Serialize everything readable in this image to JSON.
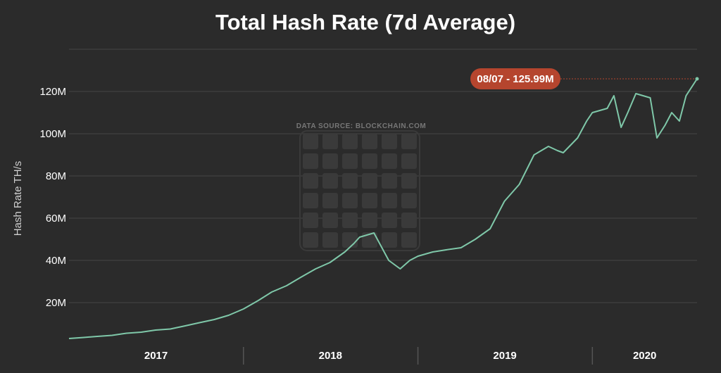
{
  "colors": {
    "background": "#2b2b2b",
    "grid": "#444444",
    "line": "#7fc8a9",
    "callout": "#b5452e",
    "watermark": "#3a3a3a"
  },
  "chart_data": {
    "type": "line",
    "title": "Total Hash Rate (7d Average)",
    "subtitle": "",
    "ylabel": "Hash Rate TH/s",
    "xlabel": "",
    "source_note": "DATA SOURCE: BLOCKCHAIN.COM",
    "ylim": [
      0,
      140
    ],
    "y_unit": "M",
    "y_ticks": [
      20,
      40,
      60,
      80,
      100,
      120
    ],
    "y_tick_labels": [
      "20M",
      "40M",
      "60M",
      "80M",
      "100M",
      "120M"
    ],
    "x_domain": [
      "2017-01-01",
      "2020-08-07"
    ],
    "x_ticks": [
      {
        "label": "2017",
        "start": "2017-01-01",
        "end": "2017-12-31"
      },
      {
        "label": "2018",
        "start": "2018-01-01",
        "end": "2018-12-31"
      },
      {
        "label": "2019",
        "start": "2019-01-01",
        "end": "2019-12-31"
      },
      {
        "label": "2020",
        "start": "2020-01-01",
        "end": "2020-08-07"
      }
    ],
    "grid": true,
    "legend": "none",
    "series": [
      {
        "x": [
          "2017-01-01",
          "2017-02-01",
          "2017-03-01",
          "2017-04-01",
          "2017-05-01",
          "2017-06-01",
          "2017-07-01",
          "2017-08-01",
          "2017-09-01",
          "2017-10-01",
          "2017-11-01",
          "2017-12-01",
          "2018-01-01",
          "2018-02-01",
          "2018-03-01",
          "2018-04-01",
          "2018-05-01",
          "2018-06-01",
          "2018-07-01",
          "2018-08-01",
          "2018-08-20",
          "2018-09-01",
          "2018-10-01",
          "2018-11-01",
          "2018-11-25",
          "2018-12-15",
          "2019-01-01",
          "2019-02-01",
          "2019-03-01",
          "2019-04-01",
          "2019-05-01",
          "2019-06-01",
          "2019-07-01",
          "2019-08-01",
          "2019-09-01",
          "2019-10-01",
          "2019-10-20",
          "2019-11-01",
          "2019-12-01",
          "2019-12-20",
          "2020-01-01",
          "2020-02-01",
          "2020-02-15",
          "2020-03-01",
          "2020-03-15",
          "2020-04-01",
          "2020-05-01",
          "2020-05-15",
          "2020-06-01",
          "2020-06-15",
          "2020-07-01",
          "2020-07-15",
          "2020-08-07"
        ],
        "values": [
          3,
          3.5,
          4,
          4.5,
          5.5,
          6,
          7,
          7.5,
          9,
          10.5,
          12,
          14,
          17,
          21,
          25,
          28,
          32,
          36,
          39,
          44,
          48,
          51,
          53,
          40,
          36,
          40,
          42,
          44,
          45,
          46,
          50,
          55,
          68,
          76,
          90,
          94,
          92,
          91,
          98,
          106,
          110,
          112,
          118,
          103,
          110,
          119,
          117,
          98,
          104,
          110,
          106,
          118,
          125.99
        ]
      }
    ],
    "annotations": [
      {
        "label": "08/07 - 125.99M",
        "x": "2020-08-07",
        "y": 125.99
      }
    ]
  }
}
